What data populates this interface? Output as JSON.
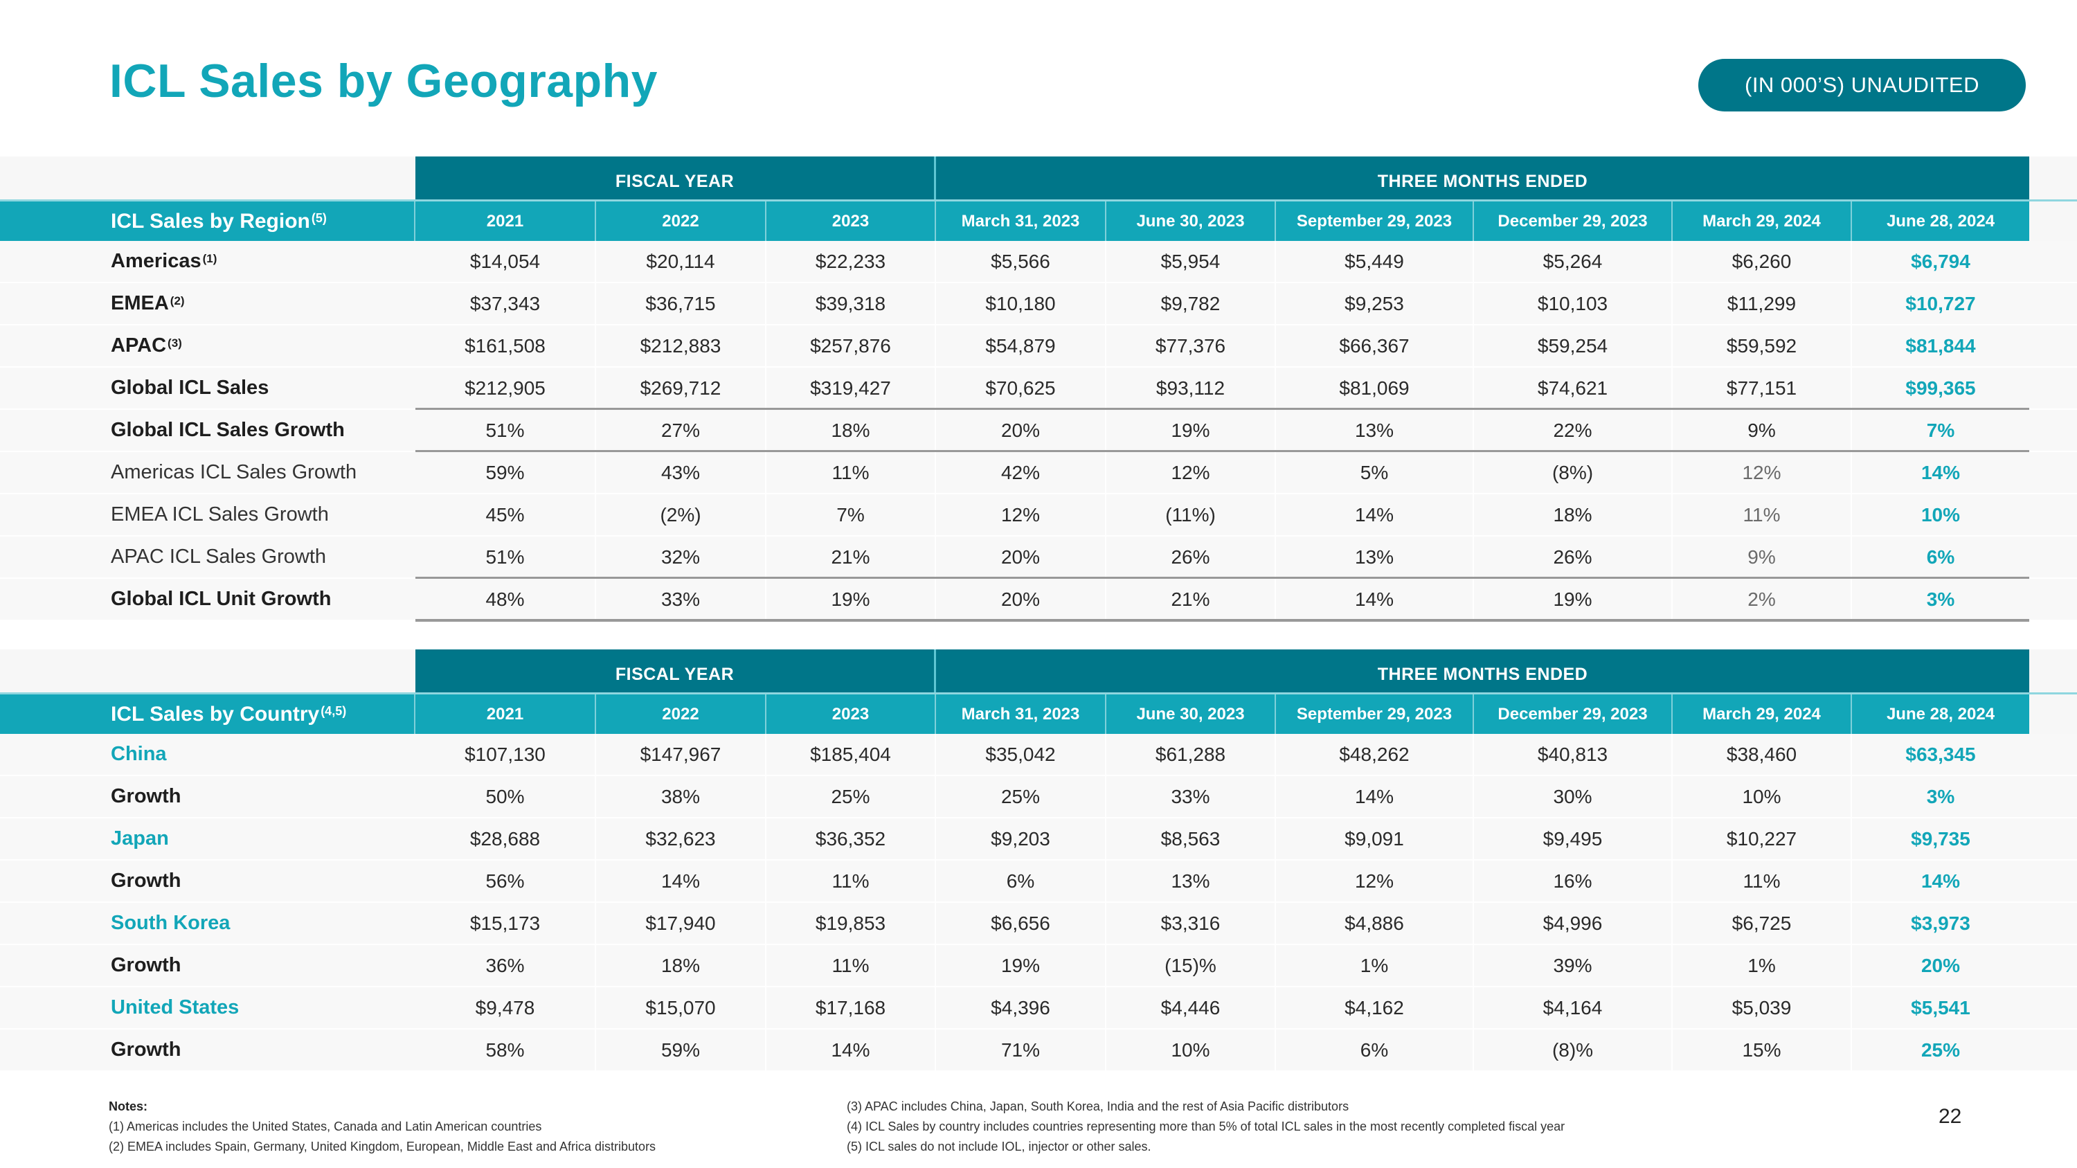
{
  "title": "ICL Sales by Geography",
  "badge": "(IN 000’S) UNAUDITED",
  "colors": {
    "brand_teal": "#12a6b8",
    "dark_teal": "#007689",
    "rule_gray": "#999999"
  },
  "group_headers": {
    "fiscal_year": "FISCAL YEAR",
    "three_months": "THREE MONTHS ENDED"
  },
  "columns": [
    "2021",
    "2022",
    "2023",
    "March 31, 2023",
    "June 30, 2023",
    "September 29, 2023",
    "December 29, 2023",
    "March 29, 2024",
    "June 28, 2024"
  ],
  "region_table": {
    "header_label": "ICL Sales by Region",
    "header_sup": "(5)",
    "rows": [
      {
        "label": "Americas",
        "sup": "(1)",
        "values": [
          "$14,054",
          "$20,114",
          "$22,233",
          "$5,566",
          "$5,954",
          "$5,449",
          "$5,264",
          "$6,260",
          "$6,794"
        ]
      },
      {
        "label": "EMEA",
        "sup": "(2)",
        "values": [
          "$37,343",
          "$36,715",
          "$39,318",
          "$10,180",
          "$9,782",
          "$9,253",
          "$10,103",
          "$11,299",
          "$10,727"
        ]
      },
      {
        "label": "APAC ",
        "sup": "(3)",
        "values": [
          "$161,508",
          "$212,883",
          "$257,876",
          "$54,879",
          "$77,376",
          "$66,367",
          "$59,254",
          "$59,592",
          "$81,844"
        ]
      },
      {
        "label": "Global ICL Sales",
        "sup": "",
        "values": [
          "$212,905",
          "$269,712",
          "$319,427",
          "$70,625",
          "$93,112",
          "$81,069",
          "$74,621",
          "$77,151",
          "$99,365"
        ]
      },
      {
        "label": "Global ICL Sales Growth",
        "sup": "",
        "values": [
          "51%",
          "27%",
          "18%",
          "20%",
          "19%",
          "13%",
          "22%",
          "9%",
          "7%"
        ]
      },
      {
        "label": "Americas ICL Sales Growth",
        "sup": "",
        "values": [
          "59%",
          "43%",
          "11%",
          "42%",
          "12%",
          "5%",
          "(8%)",
          "12%",
          "14%"
        ]
      },
      {
        "label": "EMEA ICL Sales Growth",
        "sup": "",
        "values": [
          "45%",
          "(2%)",
          "7%",
          "12%",
          "(11%)",
          "14%",
          "18%",
          "11%",
          "10%"
        ]
      },
      {
        "label": "APAC ICL Sales Growth",
        "sup": "",
        "values": [
          "51%",
          "32%",
          "21%",
          "20%",
          "26%",
          "13%",
          "26%",
          "9%",
          "6%"
        ]
      },
      {
        "label": "Global ICL Unit Growth",
        "sup": "",
        "values": [
          "48%",
          "33%",
          "19%",
          "20%",
          "21%",
          "14%",
          "19%",
          "2%",
          "3%"
        ]
      }
    ]
  },
  "country_table": {
    "header_label": "ICL Sales by Country",
    "header_sup": "(4,5)",
    "rows": [
      {
        "label": "China",
        "values": [
          "$107,130",
          "$147,967",
          "$185,404",
          "$35,042",
          "$61,288",
          "$48,262",
          "$40,813",
          "$38,460",
          "$63,345"
        ]
      },
      {
        "label": "Growth",
        "values": [
          "50%",
          "38%",
          "25%",
          "25%",
          "33%",
          "14%",
          "30%",
          "10%",
          "3%"
        ]
      },
      {
        "label": "Japan",
        "values": [
          "$28,688",
          "$32,623",
          "$36,352",
          "$9,203",
          "$8,563",
          "$9,091",
          "$9,495",
          "$10,227",
          "$9,735"
        ]
      },
      {
        "label": "Growth",
        "values": [
          "56%",
          "14%",
          "11%",
          "6%",
          "13%",
          "12%",
          "16%",
          "11%",
          "14%"
        ]
      },
      {
        "label": "South Korea",
        "values": [
          "$15,173",
          "$17,940",
          "$19,853",
          "$6,656",
          "$3,316",
          "$4,886",
          "$4,996",
          "$6,725",
          "$3,973"
        ]
      },
      {
        "label": "Growth",
        "values": [
          "36%",
          "18%",
          "11%",
          "19%",
          "(15)%",
          "1%",
          "39%",
          "1%",
          "20%"
        ]
      },
      {
        "label": "United States",
        "values": [
          "$9,478",
          "$15,070",
          "$17,168",
          "$4,396",
          "$4,446",
          "$4,162",
          "$4,164",
          "$5,039",
          "$5,541"
        ]
      },
      {
        "label": "Growth",
        "values": [
          "58%",
          "59%",
          "14%",
          "71%",
          "10%",
          "6%",
          "(8)%",
          "15%",
          "25%"
        ]
      }
    ]
  },
  "notes": {
    "heading": "Notes:",
    "left": [
      "(1) Americas includes the United States, Canada and Latin American countries",
      "(2) EMEA includes Spain, Germany, United Kingdom, European, Middle East and Africa distributors"
    ],
    "right": [
      "(3) APAC includes China, Japan, South Korea, India and the rest of Asia Pacific distributors",
      "(4) ICL Sales by country includes countries representing more than 5% of total ICL sales in the most recently completed fiscal year",
      "(5) ICL sales do not include IOL, injector or other sales."
    ]
  },
  "page_number": "22"
}
